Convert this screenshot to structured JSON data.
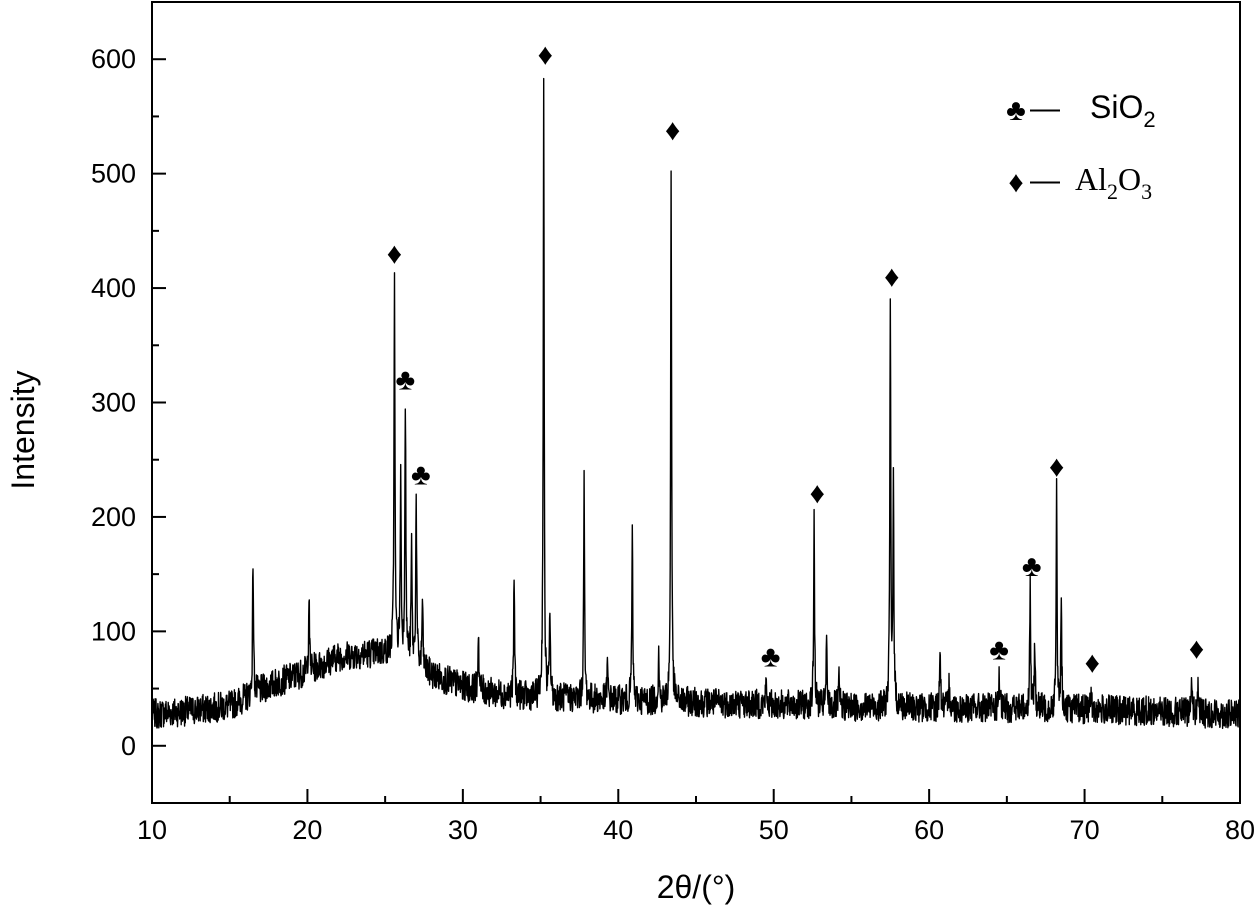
{
  "chart_data": {
    "type": "line",
    "xlabel": "2θ/(°)",
    "ylabel": "Intensity",
    "xlim": [
      10,
      80
    ],
    "ylim": [
      -50,
      650
    ],
    "x_ticks": [
      10,
      20,
      30,
      40,
      50,
      60,
      70,
      80
    ],
    "y_ticks": [
      0,
      100,
      200,
      300,
      400,
      500,
      600
    ],
    "grid": false,
    "legend_position": "top-right",
    "legend": [
      {
        "symbol": "♣",
        "symbol_name": "club-icon",
        "dash": "—",
        "label_base": "SiO",
        "label_sub": "2",
        "label_full": "SiO2"
      },
      {
        "symbol": "♦",
        "symbol_name": "diamond-icon",
        "dash": "—",
        "label_base": "Al",
        "label_sub": "2",
        "label_mid": "O",
        "label_sub2": "3",
        "label_full": "Al2O3"
      }
    ],
    "series": [
      {
        "color": "#000000",
        "baseline": [
          [
            10,
            28
          ],
          [
            12,
            30
          ],
          [
            15,
            35
          ],
          [
            18,
            55
          ],
          [
            20,
            65
          ],
          [
            22,
            78
          ],
          [
            25,
            82
          ],
          [
            26,
            82
          ],
          [
            28,
            62
          ],
          [
            30,
            52
          ],
          [
            32,
            46
          ],
          [
            34,
            43
          ],
          [
            36,
            42
          ],
          [
            40,
            40
          ],
          [
            45,
            38
          ],
          [
            50,
            36
          ],
          [
            55,
            34
          ],
          [
            60,
            33
          ],
          [
            65,
            33
          ],
          [
            70,
            32
          ],
          [
            75,
            30
          ],
          [
            80,
            27
          ]
        ],
        "peaks": [
          {
            "x": 10.4,
            "y": 25
          },
          {
            "x": 16.5,
            "y": 165
          },
          {
            "x": 20.1,
            "y": 132
          },
          {
            "x": 25.6,
            "y": 415
          },
          {
            "x": 26.0,
            "y": 237
          },
          {
            "x": 26.3,
            "y": 302
          },
          {
            "x": 26.7,
            "y": 175
          },
          {
            "x": 27.0,
            "y": 220
          },
          {
            "x": 27.4,
            "y": 127
          },
          {
            "x": 31.0,
            "y": 103
          },
          {
            "x": 33.3,
            "y": 145
          },
          {
            "x": 35.2,
            "y": 582
          },
          {
            "x": 35.6,
            "y": 120
          },
          {
            "x": 37.8,
            "y": 229
          },
          {
            "x": 39.3,
            "y": 73
          },
          {
            "x": 40.9,
            "y": 187
          },
          {
            "x": 42.6,
            "y": 80
          },
          {
            "x": 43.4,
            "y": 511
          },
          {
            "x": 49.5,
            "y": 54
          },
          {
            "x": 52.6,
            "y": 198
          },
          {
            "x": 53.4,
            "y": 87
          },
          {
            "x": 54.2,
            "y": 59
          },
          {
            "x": 57.5,
            "y": 389
          },
          {
            "x": 57.7,
            "y": 235
          },
          {
            "x": 60.7,
            "y": 91
          },
          {
            "x": 61.3,
            "y": 60
          },
          {
            "x": 64.5,
            "y": 62
          },
          {
            "x": 66.5,
            "y": 140
          },
          {
            "x": 66.8,
            "y": 90
          },
          {
            "x": 68.2,
            "y": 221
          },
          {
            "x": 68.5,
            "y": 121
          },
          {
            "x": 70.4,
            "y": 47
          },
          {
            "x": 76.9,
            "y": 63
          },
          {
            "x": 77.3,
            "y": 56
          }
        ]
      }
    ],
    "markers": [
      {
        "symbol": "♦",
        "phase": "Al2O3",
        "x": 25.6,
        "y": 430
      },
      {
        "symbol": "♣",
        "phase": "SiO2",
        "x": 26.3,
        "y": 320
      },
      {
        "symbol": "♣",
        "phase": "SiO2",
        "x": 27.3,
        "y": 237
      },
      {
        "symbol": "♦",
        "phase": "Al2O3",
        "x": 35.3,
        "y": 604
      },
      {
        "symbol": "♦",
        "phase": "Al2O3",
        "x": 43.5,
        "y": 538
      },
      {
        "symbol": "♣",
        "phase": "SiO2",
        "x": 49.8,
        "y": 78
      },
      {
        "symbol": "♦",
        "phase": "Al2O3",
        "x": 52.8,
        "y": 221
      },
      {
        "symbol": "♦",
        "phase": "Al2O3",
        "x": 57.6,
        "y": 410
      },
      {
        "symbol": "♣",
        "phase": "SiO2",
        "x": 64.5,
        "y": 84
      },
      {
        "symbol": "♣",
        "phase": "SiO2",
        "x": 66.6,
        "y": 157
      },
      {
        "symbol": "♦",
        "phase": "Al2O3",
        "x": 68.2,
        "y": 244
      },
      {
        "symbol": "♦",
        "phase": "Al2O3",
        "x": 70.5,
        "y": 73
      },
      {
        "symbol": "♦",
        "phase": "Al2O3",
        "x": 77.2,
        "y": 85
      }
    ]
  }
}
